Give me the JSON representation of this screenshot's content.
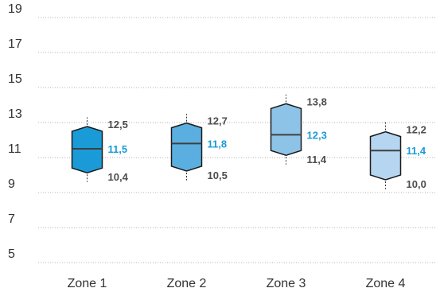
{
  "chart_data": {
    "type": "boxplot",
    "categories": [
      "Zone 1",
      "Zone 2",
      "Zone 3",
      "Zone 4"
    ],
    "ylim": [
      5,
      19
    ],
    "yticks": [
      "5",
      "7",
      "9",
      "11",
      "13",
      "15",
      "17",
      "19"
    ],
    "grid": true,
    "boxes": [
      {
        "category": "Zone 1",
        "whisker_low": 9.6,
        "q1": 10.4,
        "median": 11.5,
        "q3": 12.5,
        "whisker_high": 13.3,
        "labels": {
          "q3": "12,5",
          "median": "11,5",
          "q1": "10,4"
        },
        "fill": "#1a9bd7"
      },
      {
        "category": "Zone 2",
        "whisker_low": 9.7,
        "q1": 10.5,
        "median": 11.8,
        "q3": 12.7,
        "whisker_high": 13.5,
        "labels": {
          "q3": "12,7",
          "median": "11,8",
          "q1": "10,5"
        },
        "fill": "#5aafe0"
      },
      {
        "category": "Zone 3",
        "whisker_low": 10.6,
        "q1": 11.4,
        "median": 12.3,
        "q3": 13.8,
        "whisker_high": 14.6,
        "labels": {
          "q3": "13,8",
          "median": "12,3",
          "q1": "11,4"
        },
        "fill": "#8ec3e8"
      },
      {
        "category": "Zone 4",
        "whisker_low": 9.2,
        "q1": 10.0,
        "median": 11.4,
        "q3": 12.2,
        "whisker_high": 13.1,
        "labels": {
          "q3": "12,2",
          "median": "11,4",
          "q1": "10,0"
        },
        "fill": "#b5d5f0"
      }
    ]
  }
}
